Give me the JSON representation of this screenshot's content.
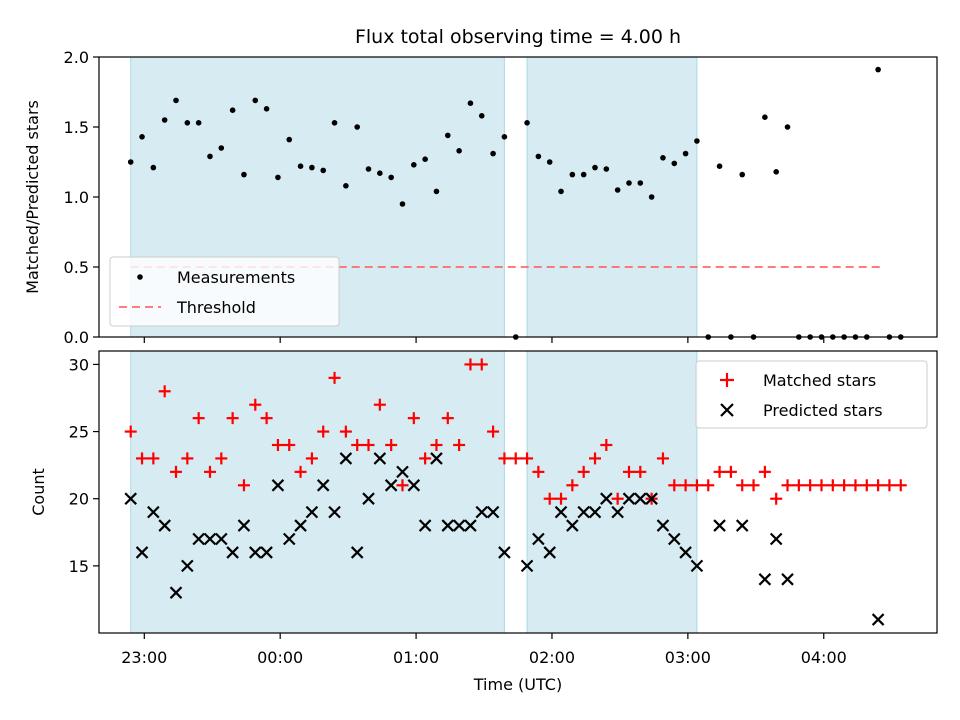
{
  "chart_data": [
    {
      "type": "scatter",
      "title": "Flux total observing time = 4.00 h",
      "xlabel": "",
      "ylabel": "Matched/Predicted stars",
      "xlim": [
        "22:40",
        "04:50"
      ],
      "ylim": [
        0,
        2.0
      ],
      "yticks": [
        "0.0",
        "0.5",
        "1.0",
        "1.5",
        "2.0"
      ],
      "grid": false,
      "legend_position": "lower-left",
      "shaded_intervals": [
        [
          "22:54",
          "01:39"
        ],
        [
          "01:49",
          "03:04"
        ]
      ],
      "shade_color": "#add8e6",
      "threshold": {
        "name": "Threshold",
        "value": 0.5,
        "x_range": [
          "22:54",
          "04:25"
        ],
        "color": "#ff6666"
      },
      "series": [
        {
          "name": "Measurements",
          "color": "#000000",
          "points": [
            [
              "22:54",
              1.25
            ],
            [
              "22:59",
              1.43
            ],
            [
              "23:04",
              1.21
            ],
            [
              "23:09",
              1.55
            ],
            [
              "23:14",
              1.69
            ],
            [
              "23:19",
              1.53
            ],
            [
              "23:24",
              1.53
            ],
            [
              "23:29",
              1.29
            ],
            [
              "23:34",
              1.35
            ],
            [
              "23:39",
              1.62
            ],
            [
              "23:44",
              1.16
            ],
            [
              "23:49",
              1.69
            ],
            [
              "23:54",
              1.63
            ],
            [
              "23:59",
              1.14
            ],
            [
              "00:04",
              1.41
            ],
            [
              "00:09",
              1.22
            ],
            [
              "00:14",
              1.21
            ],
            [
              "00:19",
              1.19
            ],
            [
              "00:24",
              1.53
            ],
            [
              "00:29",
              1.08
            ],
            [
              "00:34",
              1.5
            ],
            [
              "00:39",
              1.2
            ],
            [
              "00:44",
              1.17
            ],
            [
              "00:49",
              1.14
            ],
            [
              "00:54",
              0.95
            ],
            [
              "00:59",
              1.23
            ],
            [
              "01:04",
              1.27
            ],
            [
              "01:09",
              1.04
            ],
            [
              "01:14",
              1.44
            ],
            [
              "01:19",
              1.33
            ],
            [
              "01:24",
              1.67
            ],
            [
              "01:29",
              1.58
            ],
            [
              "01:34",
              1.31
            ],
            [
              "01:39",
              1.43
            ],
            [
              "01:44",
              0.0
            ],
            [
              "01:49",
              1.53
            ],
            [
              "01:54",
              1.29
            ],
            [
              "01:59",
              1.25
            ],
            [
              "02:04",
              1.04
            ],
            [
              "02:09",
              1.16
            ],
            [
              "02:14",
              1.16
            ],
            [
              "02:19",
              1.21
            ],
            [
              "02:24",
              1.2
            ],
            [
              "02:29",
              1.05
            ],
            [
              "02:34",
              1.1
            ],
            [
              "02:39",
              1.1
            ],
            [
              "02:44",
              1.0
            ],
            [
              "02:49",
              1.28
            ],
            [
              "02:54",
              1.24
            ],
            [
              "02:59",
              1.31
            ],
            [
              "03:04",
              1.4
            ],
            [
              "03:09",
              0.0
            ],
            [
              "03:14",
              1.22
            ],
            [
              "03:19",
              0.0
            ],
            [
              "03:24",
              1.16
            ],
            [
              "03:29",
              0.0
            ],
            [
              "03:34",
              1.57
            ],
            [
              "03:39",
              1.18
            ],
            [
              "03:44",
              1.5
            ],
            [
              "03:49",
              0.0
            ],
            [
              "03:54",
              0.0
            ],
            [
              "03:59",
              0.0
            ],
            [
              "04:04",
              0.0
            ],
            [
              "04:09",
              0.0
            ],
            [
              "04:14",
              0.0
            ],
            [
              "04:19",
              0.0
            ],
            [
              "04:24",
              1.91
            ],
            [
              "04:29",
              0.0
            ],
            [
              "04:34",
              0.0
            ]
          ]
        }
      ]
    },
    {
      "type": "scatter",
      "title": "",
      "xlabel": "Time (UTC)",
      "ylabel": "Count",
      "xlim": [
        "22:40",
        "04:50"
      ],
      "ylim": [
        10,
        31
      ],
      "xticks": [
        "23:00",
        "00:00",
        "01:00",
        "02:00",
        "03:00",
        "04:00"
      ],
      "yticks": [
        "15",
        "20",
        "25",
        "30"
      ],
      "grid": false,
      "legend_position": "top-right",
      "shaded_intervals": [
        [
          "22:54",
          "01:39"
        ],
        [
          "01:49",
          "03:04"
        ]
      ],
      "shade_color": "#add8e6",
      "series": [
        {
          "name": "Matched stars",
          "color": "#ff0000",
          "marker": "plus",
          "points": [
            [
              "22:54",
              25
            ],
            [
              "22:59",
              23
            ],
            [
              "23:04",
              23
            ],
            [
              "23:09",
              28
            ],
            [
              "23:14",
              22
            ],
            [
              "23:19",
              23
            ],
            [
              "23:24",
              26
            ],
            [
              "23:29",
              22
            ],
            [
              "23:34",
              23
            ],
            [
              "23:39",
              26
            ],
            [
              "23:44",
              21
            ],
            [
              "23:49",
              27
            ],
            [
              "23:54",
              26
            ],
            [
              "23:59",
              24
            ],
            [
              "00:04",
              24
            ],
            [
              "00:09",
              22
            ],
            [
              "00:14",
              23
            ],
            [
              "00:19",
              25
            ],
            [
              "00:24",
              29
            ],
            [
              "00:29",
              25
            ],
            [
              "00:34",
              24
            ],
            [
              "00:39",
              24
            ],
            [
              "00:44",
              27
            ],
            [
              "00:49",
              24
            ],
            [
              "00:54",
              21
            ],
            [
              "00:59",
              26
            ],
            [
              "01:04",
              23
            ],
            [
              "01:09",
              24
            ],
            [
              "01:14",
              26
            ],
            [
              "01:19",
              24
            ],
            [
              "01:24",
              30
            ],
            [
              "01:29",
              30
            ],
            [
              "01:34",
              25
            ],
            [
              "01:39",
              23
            ],
            [
              "01:44",
              23
            ],
            [
              "01:49",
              23
            ],
            [
              "01:54",
              22
            ],
            [
              "01:59",
              20
            ],
            [
              "02:04",
              20
            ],
            [
              "02:09",
              21
            ],
            [
              "02:14",
              22
            ],
            [
              "02:19",
              23
            ],
            [
              "02:24",
              24
            ],
            [
              "02:29",
              20
            ],
            [
              "02:34",
              22
            ],
            [
              "02:39",
              22
            ],
            [
              "02:44",
              20
            ],
            [
              "02:49",
              23
            ],
            [
              "02:54",
              21
            ],
            [
              "02:59",
              21
            ],
            [
              "03:04",
              21
            ],
            [
              "03:09",
              21
            ],
            [
              "03:14",
              22
            ],
            [
              "03:19",
              22
            ],
            [
              "03:24",
              21
            ],
            [
              "03:29",
              21
            ],
            [
              "03:34",
              22
            ],
            [
              "03:39",
              20
            ],
            [
              "03:44",
              21
            ],
            [
              "03:49",
              21
            ],
            [
              "03:54",
              21
            ],
            [
              "03:59",
              21
            ],
            [
              "04:04",
              21
            ],
            [
              "04:09",
              21
            ],
            [
              "04:14",
              21
            ],
            [
              "04:19",
              21
            ],
            [
              "04:24",
              21
            ],
            [
              "04:29",
              21
            ],
            [
              "04:34",
              21
            ]
          ]
        },
        {
          "name": "Predicted stars",
          "color": "#000000",
          "marker": "x",
          "points": [
            [
              "22:54",
              20
            ],
            [
              "22:59",
              16
            ],
            [
              "23:04",
              19
            ],
            [
              "23:09",
              18
            ],
            [
              "23:14",
              13
            ],
            [
              "23:19",
              15
            ],
            [
              "23:24",
              17
            ],
            [
              "23:29",
              17
            ],
            [
              "23:34",
              17
            ],
            [
              "23:39",
              16
            ],
            [
              "23:44",
              18
            ],
            [
              "23:49",
              16
            ],
            [
              "23:54",
              16
            ],
            [
              "23:59",
              21
            ],
            [
              "00:04",
              17
            ],
            [
              "00:09",
              18
            ],
            [
              "00:14",
              19
            ],
            [
              "00:19",
              21
            ],
            [
              "00:24",
              19
            ],
            [
              "00:29",
              23
            ],
            [
              "00:34",
              16
            ],
            [
              "00:39",
              20
            ],
            [
              "00:44",
              23
            ],
            [
              "00:49",
              21
            ],
            [
              "00:54",
              22
            ],
            [
              "00:59",
              21
            ],
            [
              "01:04",
              18
            ],
            [
              "01:09",
              23
            ],
            [
              "01:14",
              18
            ],
            [
              "01:19",
              18
            ],
            [
              "01:24",
              18
            ],
            [
              "01:29",
              19
            ],
            [
              "01:34",
              19
            ],
            [
              "01:39",
              16
            ],
            [
              "01:49",
              15
            ],
            [
              "01:54",
              17
            ],
            [
              "01:59",
              16
            ],
            [
              "02:04",
              19
            ],
            [
              "02:09",
              18
            ],
            [
              "02:14",
              19
            ],
            [
              "02:19",
              19
            ],
            [
              "02:24",
              20
            ],
            [
              "02:29",
              19
            ],
            [
              "02:34",
              20
            ],
            [
              "02:39",
              20
            ],
            [
              "02:44",
              20
            ],
            [
              "02:49",
              18
            ],
            [
              "02:54",
              17
            ],
            [
              "02:59",
              16
            ],
            [
              "03:04",
              15
            ],
            [
              "03:14",
              18
            ],
            [
              "03:24",
              18
            ],
            [
              "03:34",
              14
            ],
            [
              "03:39",
              17
            ],
            [
              "03:44",
              14
            ],
            [
              "04:24",
              11
            ]
          ]
        }
      ]
    }
  ]
}
